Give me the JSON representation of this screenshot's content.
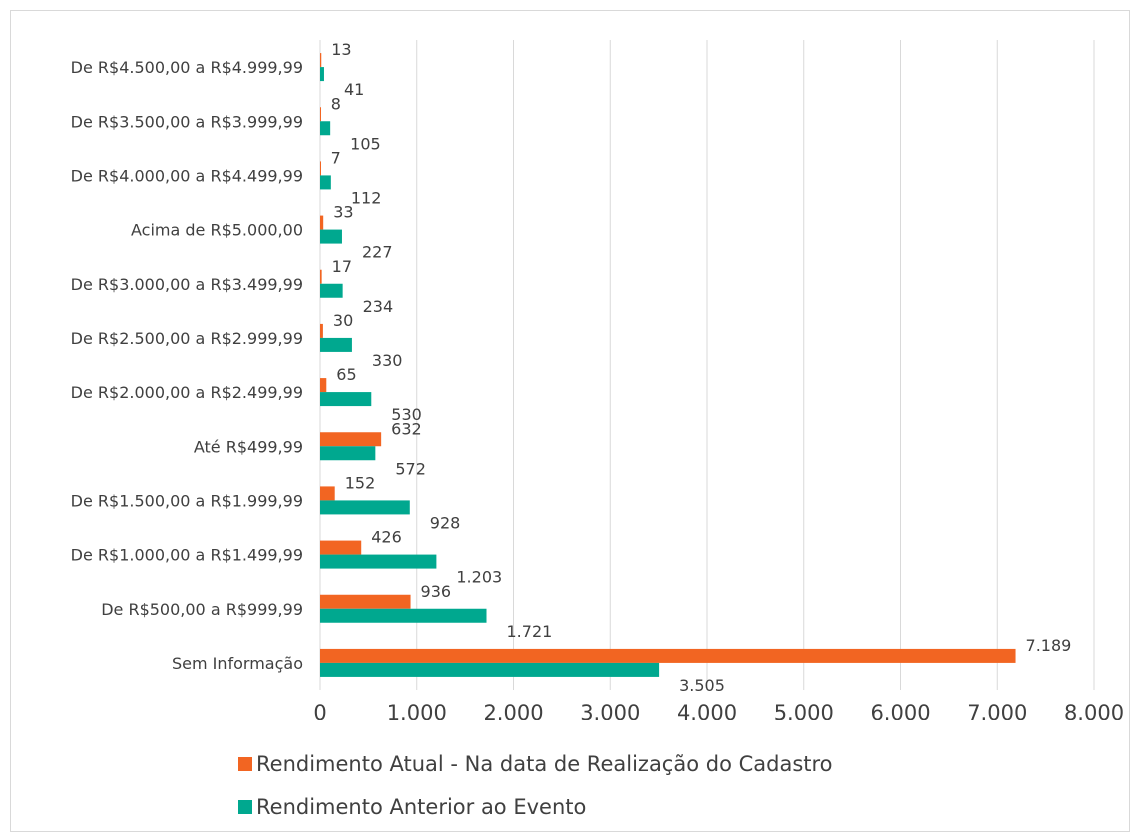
{
  "colors": {
    "series_current": "#f26522",
    "series_previous": "#00a88f",
    "grid": "#d9d9d9",
    "text": "#404040"
  },
  "chart_data": {
    "type": "bar",
    "orientation": "horizontal",
    "categories": [
      "Sem Informação",
      "De R$500,00 a R$999,99",
      "De R$1.000,00 a R$1.499,99",
      "De R$1.500,00 a R$1.999,99",
      "Até R$499,99",
      "De R$2.000,00 a R$2.499,99",
      "De R$2.500,00 a R$2.999,99",
      "De R$3.000,00 a R$3.499,99",
      "Acima de R$5.000,00",
      "De R$4.000,00 a R$4.499,99",
      "De R$3.500,00 a R$3.999,99",
      "De R$4.500,00 a R$4.999,99"
    ],
    "series": [
      {
        "name": "Rendimento Atual - Na data de Realização do Cadastro",
        "values": [
          7189,
          936,
          426,
          152,
          632,
          65,
          30,
          17,
          33,
          7,
          8,
          13
        ],
        "labels": [
          "7.189",
          "936",
          "426",
          "152",
          "632",
          "65",
          "30",
          "17",
          "33",
          "7",
          "8",
          "13"
        ]
      },
      {
        "name": "Rendimento Anterior ao Evento",
        "values": [
          3505,
          1721,
          1203,
          928,
          572,
          530,
          330,
          234,
          227,
          112,
          105,
          41
        ],
        "labels": [
          "3.505",
          "1.721",
          "1.203",
          "928",
          "572",
          "530",
          "330",
          "234",
          "227",
          "112",
          "105",
          "41"
        ]
      }
    ],
    "xlim": [
      0,
      8000
    ],
    "xticks": [
      0,
      1000,
      2000,
      3000,
      4000,
      5000,
      6000,
      7000,
      8000
    ],
    "xtick_labels": [
      "0",
      "1.000",
      "2.000",
      "3.000",
      "4.000",
      "5.000",
      "6.000",
      "7.000",
      "8.000"
    ],
    "title": "",
    "xlabel": "",
    "ylabel": "",
    "grid": "vertical",
    "legend": "bottom"
  }
}
